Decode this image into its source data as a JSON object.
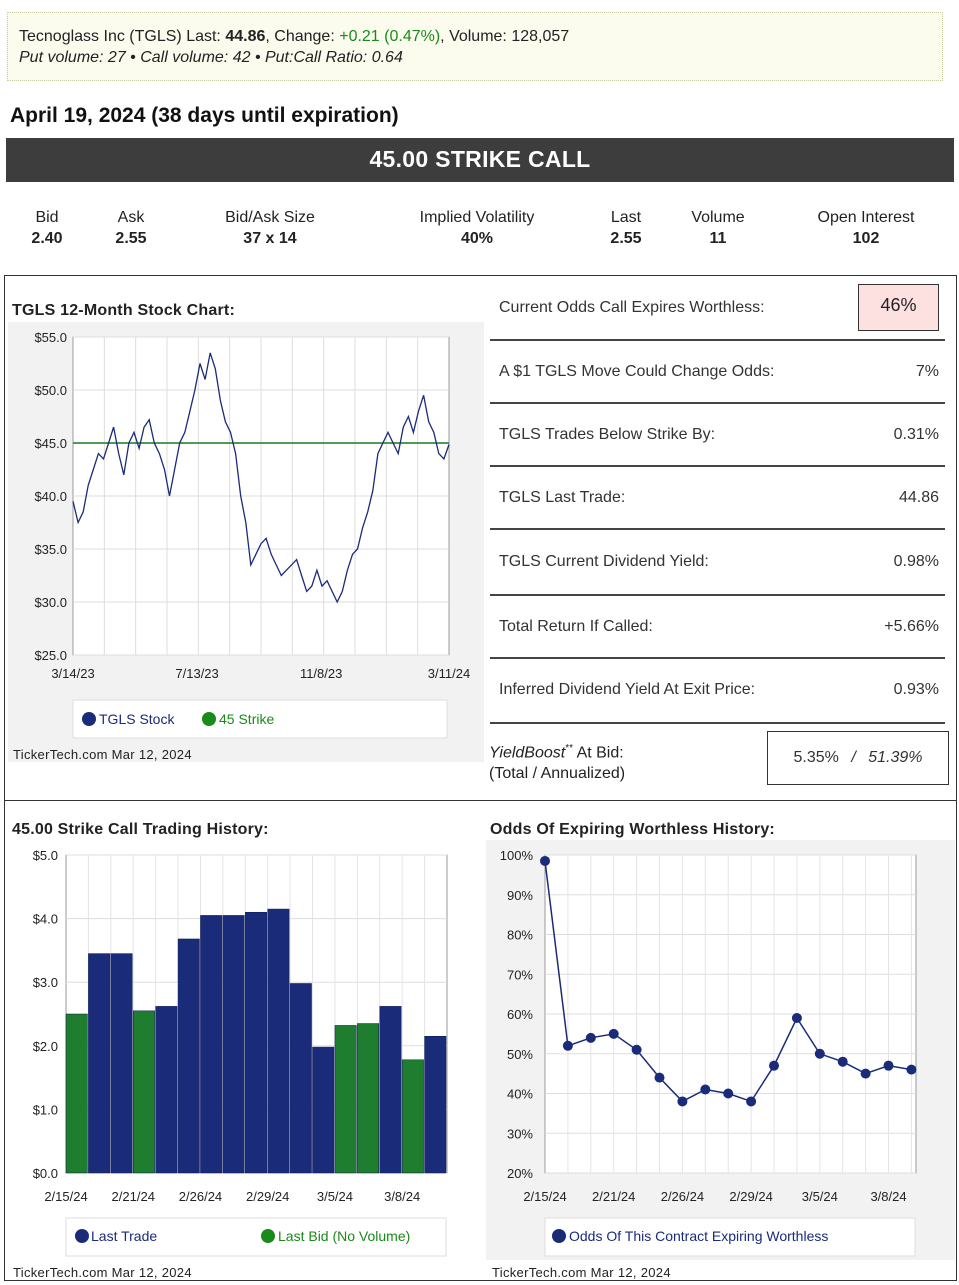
{
  "header": {
    "company": "Tecnoglass Inc (TGLS)",
    "last_label": "Last:",
    "last_value": "44.86",
    "change_label": ", Change:",
    "change_value": "+0.21 (0.47%)",
    "volume_label": ", Volume:",
    "volume_value": "128,057",
    "line2": "Put volume: 27  •  Call volume: 42  •  Put:Call Ratio: 0.64"
  },
  "expiration": "April 19, 2024 (38 days until expiration)",
  "strike_title": "45.00 STRIKE CALL",
  "quotes": [
    {
      "label": "Bid",
      "value": "2.40"
    },
    {
      "label": "Ask",
      "value": "2.55"
    },
    {
      "label": "Bid/Ask Size",
      "value": "37 x 14"
    },
    {
      "label": "Implied Volatility",
      "value": "40%"
    },
    {
      "label": "Last",
      "value": "2.55"
    },
    {
      "label": "Volume",
      "value": "11"
    },
    {
      "label": "Open Interest",
      "value": "102"
    }
  ],
  "stats": [
    {
      "label": "Current Odds Call Expires Worthless:",
      "value": "46%"
    },
    {
      "label": "A $1 TGLS Move Could Change Odds:",
      "value": "7%"
    },
    {
      "label": "TGLS Trades Below Strike By:",
      "value": "0.31%"
    },
    {
      "label": "TGLS Last Trade:",
      "value": "44.86"
    },
    {
      "label": "TGLS Current Dividend Yield:",
      "value": "0.98%"
    },
    {
      "label": "Total Return If Called:",
      "value": "+5.66%"
    },
    {
      "label": "Inferred Dividend Yield At Exit Price:",
      "value": "0.93%"
    }
  ],
  "yieldboost": {
    "name": "YieldBoost",
    "mark": "**",
    "suffix": " At Bid:",
    "sub": "(Total / Annualized)",
    "total": "5.35%",
    "sep": "/",
    "annualized": "51.39%"
  },
  "footer": "TickerTech.com  Mar 12, 2024",
  "chart_data": [
    {
      "type": "line",
      "title": "TGLS 12-Month Stock Chart:",
      "ylim": [
        25,
        55
      ],
      "y_ticks": [
        "$55.0",
        "$50.0",
        "$45.0",
        "$40.0",
        "$35.0",
        "$30.0",
        "$25.0"
      ],
      "x_ticks": [
        "3/14/23",
        "7/13/23",
        "11/8/23",
        "3/11/24"
      ],
      "legend": [
        "TGLS Stock",
        "45 Strike"
      ],
      "strike": 45,
      "values": [
        39.5,
        37.5,
        38.5,
        41,
        42.5,
        44,
        43.5,
        45,
        46.5,
        44,
        42,
        45,
        46,
        44.5,
        46.5,
        47.2,
        45,
        44,
        42.5,
        40,
        42.5,
        45,
        46,
        48,
        50,
        52.5,
        51,
        53.5,
        52,
        49,
        47,
        46,
        44,
        40,
        37.5,
        33.5,
        34.5,
        35.5,
        36,
        34.5,
        33.5,
        32.5,
        33,
        33.5,
        34,
        32.5,
        31,
        31.5,
        33,
        31.5,
        32,
        31,
        30,
        31,
        33,
        34.5,
        35,
        37,
        38.5,
        40.5,
        44,
        45,
        46,
        45,
        44,
        46.5,
        47.5,
        46,
        48,
        49.5,
        47,
        46,
        44,
        43.5,
        44.86
      ]
    },
    {
      "type": "bar",
      "title": "45.00 Strike Call Trading History:",
      "ylim": [
        0,
        5
      ],
      "y_ticks": [
        "$5.0",
        "$4.0",
        "$3.0",
        "$2.0",
        "$1.0",
        "$0.0"
      ],
      "x_ticks": [
        "2/15/24",
        "2/21/24",
        "2/26/24",
        "2/29/24",
        "3/5/24",
        "3/8/24"
      ],
      "legend": [
        "Last Trade",
        "Last Bid (No Volume)"
      ],
      "series": [
        {
          "name": "Last Trade",
          "values": [
            null,
            3.45,
            3.45,
            null,
            2.62,
            3.68,
            4.05,
            4.05,
            4.1,
            4.15,
            2.98,
            1.98,
            null,
            null,
            2.62,
            null,
            2.15
          ]
        },
        {
          "name": "Last Bid (No Volume)",
          "values": [
            2.5,
            null,
            null,
            2.55,
            null,
            null,
            null,
            null,
            null,
            null,
            null,
            null,
            2.32,
            2.35,
            null,
            1.78,
            null
          ]
        }
      ]
    },
    {
      "type": "line",
      "title": "Odds Of Expiring Worthless History:",
      "ylim": [
        20,
        100
      ],
      "y_ticks": [
        "100%",
        "90%",
        "80%",
        "70%",
        "60%",
        "50%",
        "40%",
        "30%",
        "20%"
      ],
      "x_ticks": [
        "2/15/24",
        "2/21/24",
        "2/26/24",
        "2/29/24",
        "3/5/24",
        "3/8/24"
      ],
      "legend": [
        "Odds Of This Contract Expiring Worthless"
      ],
      "values": [
        98.5,
        52,
        54,
        55,
        51,
        44,
        38,
        41,
        40,
        38,
        47,
        59,
        50,
        48,
        45,
        47,
        46
      ]
    }
  ],
  "colors": {
    "navy": "#1a2b7a",
    "green": "#1a7a1a",
    "bar_green": "#1e7d2e",
    "pink": "#fde0e0"
  }
}
